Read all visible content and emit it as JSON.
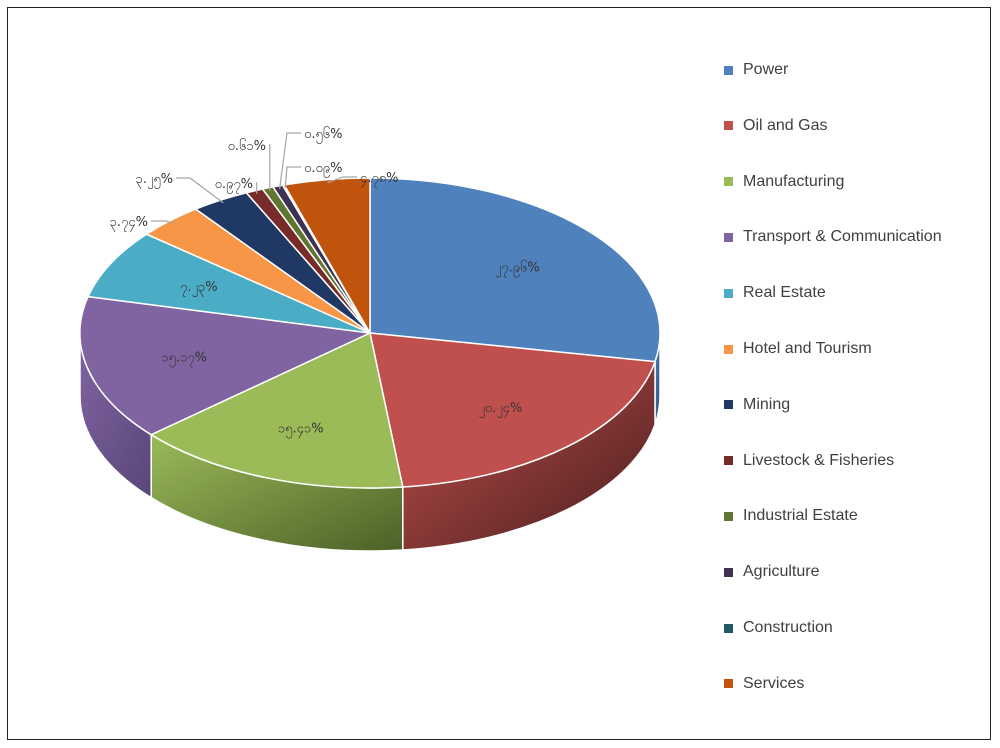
{
  "chart_data": {
    "type": "pie",
    "title": "",
    "legend_position": "right",
    "slices": [
      {
        "name": "Power",
        "label": "၂၇.၉၆%",
        "value": 27.96,
        "color": "#4F81BD",
        "side": "#2C4D75"
      },
      {
        "name": "Oil and Gas",
        "label": "၂၀.၂၄%",
        "value": 20.24,
        "color": "#C0504D",
        "side": "#4A1E1E"
      },
      {
        "name": "Manufacturing",
        "label": "၁၅.၄၁%",
        "value": 15.41,
        "color": "#9BBB59",
        "side": "#4C6128"
      },
      {
        "name": "Transport & Communication",
        "label": "၁၅.၁၇%",
        "value": 15.17,
        "color": "#8064A2",
        "side": "#5A4578"
      },
      {
        "name": "Real Estate",
        "label": "၇.၂၃%",
        "value": 7.23,
        "color": "#4BACC6",
        "side": "#2E7A8E"
      },
      {
        "name": "Hotel and Tourism",
        "label": "၃.၇၄%",
        "value": 3.74,
        "color": "#F79646",
        "side": "#B4661F"
      },
      {
        "name": "Mining",
        "label": "၃.၂၅%",
        "value": 3.25,
        "color": "#1F3864",
        "side": "#14254A"
      },
      {
        "name": "Livestock & Fisheries",
        "label": "၀.၉၇%",
        "value": 0.97,
        "color": "#772C2A",
        "side": "#4E1C1B"
      },
      {
        "name": "Industrial Estate",
        "label": "၀.၆၁%",
        "value": 0.61,
        "color": "#5F7530",
        "side": "#3D4C1F"
      },
      {
        "name": "Agriculture",
        "label": "၀.၅၆%",
        "value": 0.56,
        "color": "#3F3151",
        "side": "#2A2036"
      },
      {
        "name": "Construction",
        "label": "၀.၀၉%",
        "value": 0.09,
        "color": "#215968",
        "side": "#153B45"
      },
      {
        "name": "Services",
        "label": "၄.၇၈%",
        "value": 4.78,
        "color": "#C0540D",
        "side": "#7E3708"
      }
    ]
  }
}
